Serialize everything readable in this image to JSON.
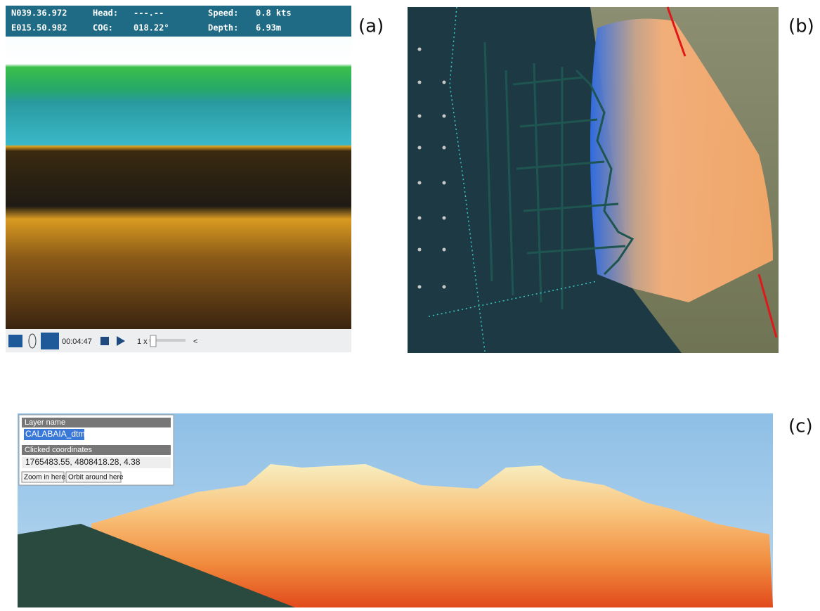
{
  "panel_labels": [
    "(a)",
    "(b)",
    "(c)"
  ],
  "sonar": {
    "header": [
      [
        "N039.36.972",
        "Head:",
        "---.--",
        "Speed:",
        "0.8 kts"
      ],
      [
        "E015.50.982",
        "COG:",
        "018.22°",
        "Depth:",
        "6.93m"
      ]
    ],
    "toolbar": {
      "time": "00:04:47",
      "speed": "1 x",
      "collapse": "<"
    }
  },
  "viewer": {
    "layer_name_label": "Layer name",
    "layer_name": "CALABAIA_dtm",
    "coordinates_label": "Clicked coordinates",
    "coordinates": "1765483.55, 4808418.28, 4.38",
    "buttons": [
      "Zoom in here",
      "Orbit around here"
    ]
  }
}
